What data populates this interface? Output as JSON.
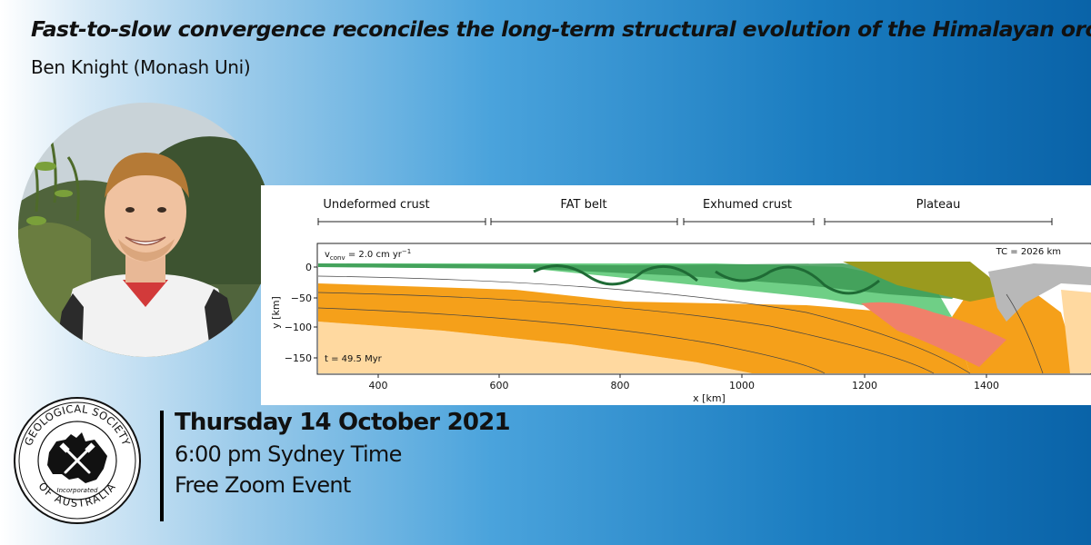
{
  "talk": {
    "title": "Fast-to-slow convergence reconciles the long-term structural evolution of the Himalayan orogen",
    "speaker": "Ben Knight (Monash Uni)"
  },
  "event": {
    "date": "Thursday 14 October 2021",
    "time": "6:00 pm Sydney Time",
    "format": "Free Zoom Event"
  },
  "logo": {
    "text_top": "GEOLOGICAL SOCIETY",
    "text_bottom": "OF AUSTRALIA",
    "incorporated": "Incorporated"
  },
  "figure": {
    "regions": [
      "Undeformed crust",
      "FAT belt",
      "Exhumed crust",
      "Plateau"
    ],
    "velocity_label": "v",
    "velocity_sub": "conv",
    "velocity_value": " = 2.0 cm yr",
    "velocity_exp": "−1",
    "tc_label": "TC = 2026 km",
    "time_label": "t = 49.5 Myr",
    "ylabel": "y [km]",
    "xlabel": "x [km]",
    "x_ticks": [
      "400",
      "600",
      "800",
      "1000",
      "1200",
      "1400"
    ],
    "y_ticks": [
      "0",
      "−50",
      "−100",
      "−150"
    ],
    "colors": {
      "mantle_light": "#ffd9a0",
      "mantle": "#f5a01a",
      "crust_green": "#6fcf86",
      "crust_dark": "#3d9a55",
      "plateau": "#9a9a1e",
      "melt": "#f0806a",
      "slab": "#b8b8b8"
    }
  },
  "colors": {
    "gradient_left": "#ffffff",
    "gradient_right": "#0a63a8"
  }
}
